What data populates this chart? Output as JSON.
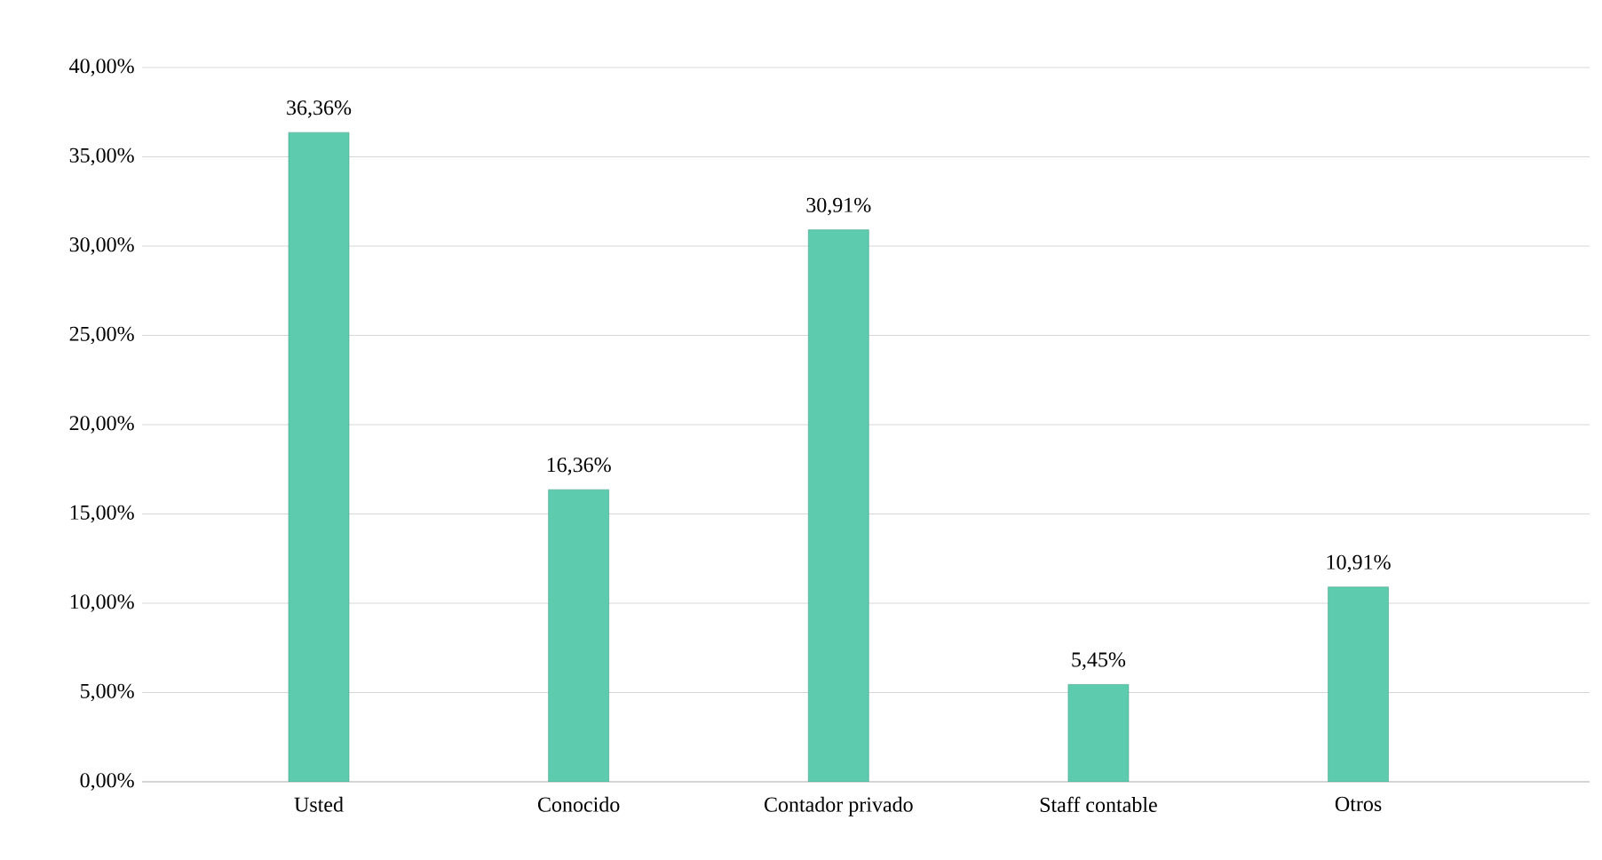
{
  "chart_data": {
    "type": "bar",
    "categories": [
      "Usted",
      "Conocido",
      "Contador privado",
      "Staff contable",
      "Otros"
    ],
    "values": [
      36.36,
      16.36,
      30.91,
      5.45,
      10.91
    ],
    "value_labels": [
      "36,36%",
      "16,36%",
      "30,91%",
      "5,45%",
      "10,91%"
    ],
    "color": "#5ccbae",
    "ylim": [
      0,
      40
    ],
    "yticks": [
      {
        "value": 0,
        "label": "0,00%"
      },
      {
        "value": 5,
        "label": "5,00%"
      },
      {
        "value": 10,
        "label": "10,00%"
      },
      {
        "value": 15,
        "label": "15,00%"
      },
      {
        "value": 20,
        "label": "20,00%"
      },
      {
        "value": 25,
        "label": "25,00%"
      },
      {
        "value": 30,
        "label": "30,00%"
      },
      {
        "value": 35,
        "label": "35,00%"
      },
      {
        "value": 40,
        "label": "40,00%"
      }
    ],
    "grid": "y"
  }
}
